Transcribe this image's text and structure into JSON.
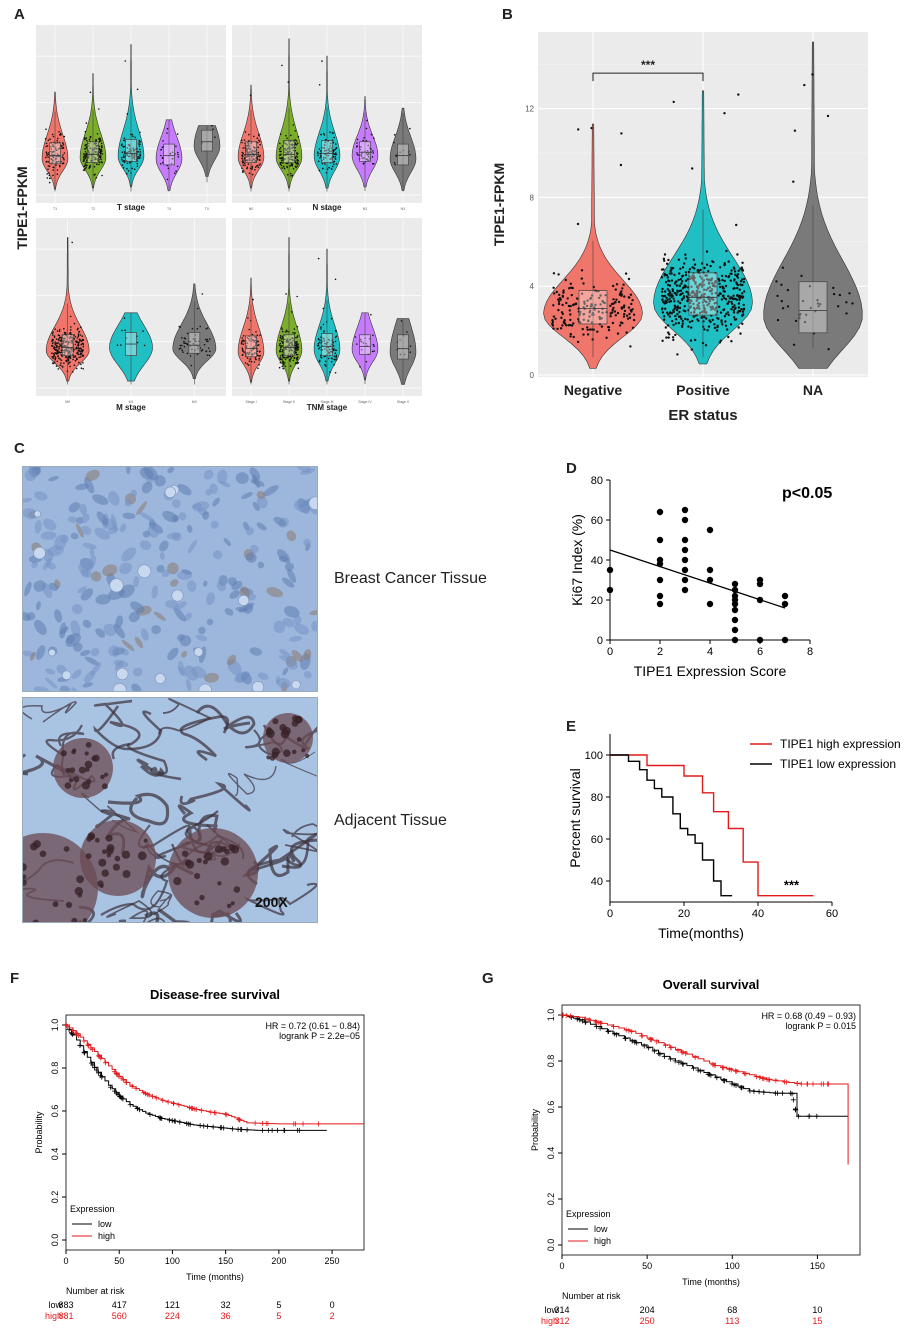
{
  "panels": {
    "A": {
      "letter": "A",
      "ylabel": "TIPE1-FPKM",
      "subplots": [
        {
          "xlabel": "T   stage",
          "groups": [
            {
              "label": "T1",
              "color": "#f0756b",
              "median": 3.4,
              "q1": 2.7,
              "q3": 4.5,
              "max": 8.9,
              "n": 120
            },
            {
              "label": "T2",
              "color": "#7bae2a",
              "median": 3.5,
              "q1": 2.8,
              "q3": 4.6,
              "max": 10.5,
              "n": 170
            },
            {
              "label": "T3",
              "color": "#1fbfc3",
              "median": 3.6,
              "q1": 2.9,
              "q3": 4.8,
              "max": 13.0,
              "n": 110
            },
            {
              "label": "T4",
              "color": "#c77cff",
              "median": 3.4,
              "q1": 2.6,
              "q3": 4.4,
              "max": 6.5,
              "n": 30
            },
            {
              "label": "TX",
              "color": "#7a7a7a",
              "median": 4.6,
              "q1": 3.8,
              "q3": 5.6,
              "max": 6.0,
              "n": 4
            }
          ]
        },
        {
          "xlabel": "N stage",
          "groups": [
            {
              "label": "N0",
              "color": "#f0756b",
              "median": 3.5,
              "q1": 2.8,
              "q3": 4.6,
              "max": 9.5,
              "n": 150
            },
            {
              "label": "N1",
              "color": "#7bae2a",
              "median": 3.5,
              "q1": 2.8,
              "q3": 4.7,
              "max": 13.5,
              "n": 150
            },
            {
              "label": "N2",
              "color": "#1fbfc3",
              "median": 3.6,
              "q1": 2.8,
              "q3": 4.7,
              "max": 12.0,
              "n": 90
            },
            {
              "label": "N3",
              "color": "#c77cff",
              "median": 3.7,
              "q1": 2.9,
              "q3": 4.6,
              "max": 8.5,
              "n": 50
            },
            {
              "label": "NX",
              "color": "#7a7a7a",
              "median": 3.4,
              "q1": 2.6,
              "q3": 4.4,
              "max": 7.5,
              "n": 12
            }
          ]
        },
        {
          "xlabel": "M stage",
          "groups": [
            {
              "label": "M0",
              "color": "#f0756b",
              "median": 3.5,
              "q1": 2.8,
              "q3": 4.6,
              "max": 13.0,
              "n": 320
            },
            {
              "label": "M1",
              "color": "#1fbfc3",
              "median": 3.8,
              "q1": 2.8,
              "q3": 4.8,
              "max": 6.5,
              "n": 10
            },
            {
              "label": "MX",
              "color": "#7a7a7a",
              "median": 3.7,
              "q1": 3.0,
              "q3": 4.8,
              "max": 9.0,
              "n": 60
            }
          ]
        },
        {
          "xlabel": "TNM stage",
          "groups": [
            {
              "label": "Stage I",
              "color": "#f0756b",
              "median": 3.4,
              "q1": 2.7,
              "q3": 4.5,
              "max": 9.5,
              "n": 100
            },
            {
              "label": "Stage II",
              "color": "#7bae2a",
              "median": 3.5,
              "q1": 2.8,
              "q3": 4.6,
              "max": 13.0,
              "n": 200
            },
            {
              "label": "Stage III",
              "color": "#1fbfc3",
              "median": 3.6,
              "q1": 2.8,
              "q3": 4.7,
              "max": 12.0,
              "n": 100
            },
            {
              "label": "Stage IV",
              "color": "#c77cff",
              "median": 3.6,
              "q1": 2.9,
              "q3": 4.6,
              "max": 6.5,
              "n": 20
            },
            {
              "label": "Stage X",
              "color": "#7a7a7a",
              "median": 3.4,
              "q1": 2.5,
              "q3": 4.6,
              "max": 6.0,
              "n": 12
            }
          ]
        }
      ]
    },
    "B": {
      "letter": "B"
    },
    "C": {
      "letter": "C",
      "label1": "Breast Cancer Tissue",
      "label2": "Adjacent Tissue",
      "mag": "200X"
    },
    "D": {
      "letter": "D"
    },
    "E": {
      "letter": "E"
    },
    "F": {
      "letter": "F"
    },
    "G": {
      "letter": "G"
    }
  },
  "chart_data": [
    {
      "id": "B",
      "type": "violin",
      "title": "",
      "xlabel": "ER   status",
      "ylabel": "TIPE1-FPKM",
      "ylim": [
        0,
        15
      ],
      "yticks": [
        0,
        4,
        8,
        12
      ],
      "categories": [
        "Negative",
        "Positive",
        "NA"
      ],
      "colors": [
        "#f0756b",
        "#1fbfc3",
        "#7a7a7a"
      ],
      "medians": [
        3.0,
        3.5,
        2.9
      ],
      "q1": [
        2.3,
        2.7,
        1.9
      ],
      "q3": [
        3.8,
        4.6,
        4.2
      ],
      "mins": [
        0.8,
        0.8,
        1.2
      ],
      "maxs": [
        11.3,
        12.8,
        15.0
      ],
      "n_points": [
        200,
        500,
        40
      ],
      "annotation": "***",
      "comparison": [
        "Negative",
        "Positive"
      ]
    },
    {
      "id": "D",
      "type": "scatter",
      "title": "",
      "xlabel": "TIPE1 Expression Score",
      "ylabel": "Ki67 Index (%)",
      "xlim": [
        0,
        8
      ],
      "ylim": [
        0,
        80
      ],
      "xticks": [
        0,
        2,
        4,
        6,
        8
      ],
      "yticks": [
        0,
        20,
        40,
        60,
        80
      ],
      "annotation": "p<0.05",
      "points": [
        [
          0,
          35
        ],
        [
          0,
          25
        ],
        [
          2,
          64
        ],
        [
          2,
          50
        ],
        [
          2,
          40
        ],
        [
          2,
          38
        ],
        [
          2,
          30
        ],
        [
          2,
          22
        ],
        [
          2,
          18
        ],
        [
          3,
          65
        ],
        [
          3,
          60
        ],
        [
          3,
          50
        ],
        [
          3,
          45
        ],
        [
          3,
          40
        ],
        [
          3,
          35
        ],
        [
          3,
          30
        ],
        [
          3,
          25
        ],
        [
          4,
          55
        ],
        [
          4,
          35
        ],
        [
          4,
          30
        ],
        [
          4,
          18
        ],
        [
          5,
          28
        ],
        [
          5,
          25
        ],
        [
          5,
          22
        ],
        [
          5,
          20
        ],
        [
          5,
          18
        ],
        [
          5,
          15
        ],
        [
          5,
          10
        ],
        [
          5,
          5
        ],
        [
          5,
          0
        ],
        [
          6,
          30
        ],
        [
          6,
          28
        ],
        [
          6,
          20
        ],
        [
          6,
          0
        ],
        [
          7,
          22
        ],
        [
          7,
          18
        ],
        [
          7,
          0
        ]
      ],
      "fit_line": {
        "x": [
          0,
          7
        ],
        "y": [
          45,
          16
        ]
      }
    },
    {
      "id": "E",
      "type": "line",
      "title": "",
      "xlabel": "Time(months)",
      "ylabel": "Percent survival",
      "xlim": [
        0,
        60
      ],
      "ylim": [
        30,
        110
      ],
      "xticks": [
        0,
        20,
        40,
        60
      ],
      "yticks": [
        40,
        60,
        80,
        100
      ],
      "annotation": "***",
      "series": [
        {
          "name": "TIPE1 high expression",
          "color": "#e31a1c",
          "x": [
            0,
            10,
            20,
            25,
            28,
            32,
            36,
            40,
            55
          ],
          "y": [
            100,
            95,
            90,
            82,
            73,
            65,
            49,
            33,
            33
          ]
        },
        {
          "name": "TIPE1 low expression",
          "color": "#000000",
          "x": [
            0,
            5,
            8,
            10,
            12,
            14,
            17,
            19,
            21,
            23,
            25,
            28,
            30,
            33
          ],
          "y": [
            100,
            97,
            93,
            88,
            84,
            80,
            72,
            65,
            62,
            58,
            50,
            40,
            33,
            33
          ]
        }
      ]
    },
    {
      "id": "F",
      "type": "line",
      "title": "Disease-free survival",
      "xlabel": "Time (months)",
      "ylabel": "Probability",
      "xlim": [
        0,
        280
      ],
      "ylim": [
        0,
        1
      ],
      "xticks": [
        0,
        50,
        100,
        150,
        200,
        250
      ],
      "yticks": [
        0.0,
        0.2,
        0.4,
        0.6,
        0.8,
        1.0
      ],
      "hr_text": "HR = 0.72 (0.61 − 0.84)",
      "p_text": "logrank P = 2.2e−05",
      "legend_title": "Expression",
      "series": [
        {
          "name": "low",
          "color": "#000000",
          "x": [
            0,
            10,
            20,
            30,
            40,
            50,
            60,
            75,
            90,
            105,
            120,
            140,
            160,
            180,
            200,
            220,
            245
          ],
          "y": [
            1.0,
            0.93,
            0.85,
            0.78,
            0.72,
            0.67,
            0.63,
            0.59,
            0.565,
            0.55,
            0.535,
            0.525,
            0.515,
            0.51,
            0.51,
            0.51,
            0.51
          ]
        },
        {
          "name": "high",
          "color": "#e31a1c",
          "x": [
            0,
            10,
            20,
            30,
            40,
            50,
            60,
            75,
            90,
            105,
            120,
            135,
            150,
            170,
            200,
            240,
            280
          ],
          "y": [
            1.0,
            0.96,
            0.91,
            0.86,
            0.81,
            0.76,
            0.72,
            0.68,
            0.65,
            0.63,
            0.61,
            0.595,
            0.585,
            0.545,
            0.54,
            0.54,
            0.54
          ]
        }
      ],
      "risk_table": {
        "title": "Number at risk",
        "times": [
          0,
          50,
          100,
          150,
          200,
          250
        ],
        "rows": [
          {
            "label": "low",
            "color": "#000000",
            "values": [
              "883",
              "417",
              "121",
              "32",
              "5",
              "0"
            ]
          },
          {
            "label": "high",
            "color": "#e31a1c",
            "values": [
              "881",
              "560",
              "224",
              "36",
              "5",
              "2"
            ]
          }
        ]
      }
    },
    {
      "id": "G",
      "type": "line",
      "title": "Overall survival",
      "xlabel": "Time (months)",
      "ylabel": "Probability",
      "xlim": [
        0,
        175
      ],
      "ylim": [
        0,
        1
      ],
      "xticks": [
        0,
        50,
        100,
        150
      ],
      "yticks": [
        0.0,
        0.2,
        0.4,
        0.6,
        0.8,
        1.0
      ],
      "hr_text": "HR = 0.68 (0.49 − 0.93)",
      "p_text": "logrank P = 0.015",
      "legend_title": "Expression",
      "series": [
        {
          "name": "low",
          "color": "#000000",
          "x": [
            0,
            10,
            20,
            30,
            40,
            50,
            60,
            70,
            80,
            90,
            100,
            110,
            125,
            135,
            138,
            150,
            168
          ],
          "y": [
            1.0,
            0.98,
            0.95,
            0.92,
            0.89,
            0.86,
            0.82,
            0.79,
            0.76,
            0.73,
            0.7,
            0.67,
            0.66,
            0.66,
            0.56,
            0.56,
            0.56
          ]
        },
        {
          "name": "high",
          "color": "#e31a1c",
          "x": [
            0,
            10,
            20,
            30,
            40,
            50,
            60,
            70,
            80,
            90,
            100,
            110,
            120,
            130,
            140,
            150,
            167,
            168
          ],
          "y": [
            1.0,
            0.99,
            0.97,
            0.95,
            0.93,
            0.9,
            0.87,
            0.84,
            0.81,
            0.78,
            0.76,
            0.74,
            0.72,
            0.71,
            0.7,
            0.7,
            0.7,
            0.35
          ]
        }
      ],
      "risk_table": {
        "title": "Number at risk",
        "times": [
          0,
          50,
          100,
          150
        ],
        "rows": [
          {
            "label": "low",
            "color": "#000000",
            "values": [
              "314",
              "204",
              "68",
              "10"
            ]
          },
          {
            "label": "high",
            "color": "#e31a1c",
            "values": [
              "312",
              "250",
              "113",
              "15"
            ]
          }
        ]
      }
    }
  ]
}
